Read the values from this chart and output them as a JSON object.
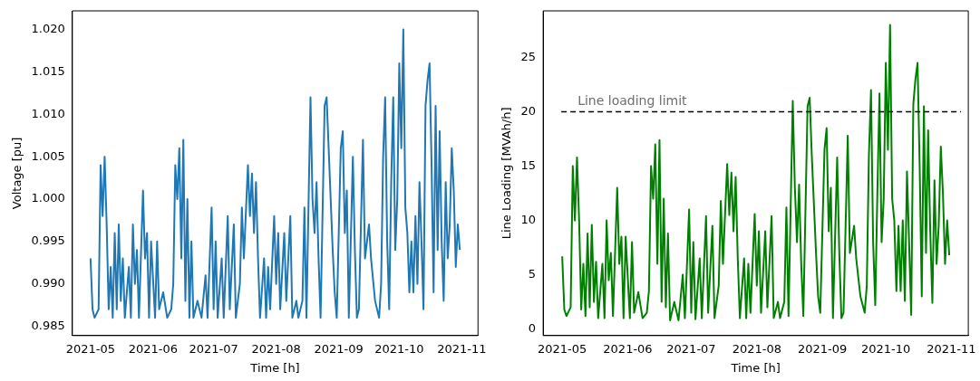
{
  "chart_data": [
    {
      "type": "line",
      "xlabel": "Time [h]",
      "ylabel": "Voltage [pu]",
      "grid": false,
      "legend": false,
      "marker": "none",
      "line_style": "solid",
      "xlim": [
        "2021-04-22",
        "2021-11-09"
      ],
      "xticks": [
        "2021-05",
        "2021-06",
        "2021-07",
        "2021-08",
        "2021-09",
        "2021-10",
        "2021-11"
      ],
      "ylim": [
        0.9839,
        1.0222
      ],
      "yticks": [
        {
          "value": 0.985,
          "label": "0.985"
        },
        {
          "value": 0.99,
          "label": "0.990"
        },
        {
          "value": 0.995,
          "label": "0.995"
        },
        {
          "value": 1.0,
          "label": "1.000"
        },
        {
          "value": 1.005,
          "label": "1.005"
        },
        {
          "value": 1.01,
          "label": "1.010"
        },
        {
          "value": 1.015,
          "label": "1.015"
        },
        {
          "value": 1.02,
          "label": "1.020"
        }
      ],
      "x": [
        "2021-05-01",
        "2021-05-02",
        "2021-05-03",
        "2021-05-05",
        "2021-05-06",
        "2021-05-07",
        "2021-05-08",
        "2021-05-09",
        "2021-05-10",
        "2021-05-11",
        "2021-05-12",
        "2021-05-13",
        "2021-05-14",
        "2021-05-15",
        "2021-05-16",
        "2021-05-17",
        "2021-05-18",
        "2021-05-20",
        "2021-05-21",
        "2021-05-22",
        "2021-05-23",
        "2021-05-24",
        "2021-05-25",
        "2021-05-27",
        "2021-05-28",
        "2021-05-29",
        "2021-05-30",
        "2021-05-31",
        "2021-06-02",
        "2021-06-03",
        "2021-06-04",
        "2021-06-06",
        "2021-06-08",
        "2021-06-10",
        "2021-06-11",
        "2021-06-12",
        "2021-06-13",
        "2021-06-14",
        "2021-06-15",
        "2021-06-16",
        "2021-06-17",
        "2021-06-18",
        "2021-06-19",
        "2021-06-20",
        "2021-06-21",
        "2021-06-23",
        "2021-06-25",
        "2021-06-27",
        "2021-06-28",
        "2021-06-30",
        "2021-07-01",
        "2021-07-02",
        "2021-07-03",
        "2021-07-05",
        "2021-07-06",
        "2021-07-08",
        "2021-07-09",
        "2021-07-11",
        "2021-07-12",
        "2021-07-14",
        "2021-07-15",
        "2021-07-16",
        "2021-07-18",
        "2021-07-19",
        "2021-07-20",
        "2021-07-21",
        "2021-07-22",
        "2021-07-23",
        "2021-07-24",
        "2021-07-26",
        "2021-07-27",
        "2021-07-28",
        "2021-07-29",
        "2021-07-31",
        "2021-08-01",
        "2021-08-02",
        "2021-08-03",
        "2021-08-05",
        "2021-08-06",
        "2021-08-08",
        "2021-08-09",
        "2021-08-11",
        "2021-08-12",
        "2021-08-14",
        "2021-08-15",
        "2021-08-16",
        "2021-08-18",
        "2021-08-19",
        "2021-08-20",
        "2021-08-21",
        "2021-08-22",
        "2021-08-23",
        "2021-08-25",
        "2021-08-26",
        "2021-08-27",
        "2021-08-29",
        "2021-08-30",
        "2021-08-31",
        "2021-09-02",
        "2021-09-03",
        "2021-09-04",
        "2021-09-05",
        "2021-09-06",
        "2021-09-08",
        "2021-09-09",
        "2021-09-10",
        "2021-09-11",
        "2021-09-13",
        "2021-09-14",
        "2021-09-16",
        "2021-09-17",
        "2021-09-19",
        "2021-09-21",
        "2021-09-22",
        "2021-09-23",
        "2021-09-24",
        "2021-09-25",
        "2021-09-26",
        "2021-09-27",
        "2021-09-28",
        "2021-09-29",
        "2021-09-30",
        "2021-10-01",
        "2021-10-02",
        "2021-10-03",
        "2021-10-04",
        "2021-10-05",
        "2021-10-06",
        "2021-10-07",
        "2021-10-08",
        "2021-10-09",
        "2021-10-10",
        "2021-10-11",
        "2021-10-12",
        "2021-10-13",
        "2021-10-14",
        "2021-10-15",
        "2021-10-16",
        "2021-10-17",
        "2021-10-18",
        "2021-10-19",
        "2021-10-20",
        "2021-10-21",
        "2021-10-22",
        "2021-10-23",
        "2021-10-24",
        "2021-10-25",
        "2021-10-26",
        "2021-10-27",
        "2021-10-28",
        "2021-10-29",
        "2021-10-30",
        "2021-10-31"
      ],
      "series": [
        {
          "color": "#1f77b4",
          "values": [
            0.993,
            0.987,
            0.986,
            0.987,
            1.004,
            0.998,
            1.005,
            0.997,
            0.987,
            0.992,
            0.986,
            0.996,
            0.987,
            0.997,
            0.988,
            0.993,
            0.986,
            0.992,
            0.986,
            0.997,
            0.99,
            0.994,
            0.986,
            1.001,
            0.993,
            0.996,
            0.986,
            0.995,
            0.986,
            0.995,
            0.987,
            0.989,
            0.986,
            0.987,
            0.99,
            1.004,
            1.0,
            1.006,
            0.993,
            1.007,
            0.988,
            1.0,
            0.986,
            0.995,
            0.986,
            0.988,
            0.986,
            0.991,
            0.986,
            0.999,
            0.987,
            0.995,
            0.986,
            0.993,
            0.986,
            0.998,
            0.987,
            0.997,
            0.986,
            0.99,
            0.999,
            0.993,
            1.004,
            0.998,
            1.003,
            0.996,
            1.002,
            0.993,
            0.986,
            0.993,
            0.986,
            0.992,
            0.987,
            0.998,
            0.99,
            0.996,
            0.987,
            0.996,
            0.988,
            0.998,
            0.986,
            0.988,
            0.986,
            0.988,
            0.999,
            0.986,
            1.012,
            1.0,
            0.996,
            1.002,
            0.993,
            0.986,
            1.011,
            1.012,
            1.006,
            0.994,
            0.989,
            0.986,
            1.006,
            1.008,
            0.996,
            1.001,
            0.986,
            1.005,
            0.994,
            0.986,
            0.987,
            1.007,
            0.993,
            0.997,
            0.993,
            0.988,
            0.986,
            0.99,
            1.005,
            1.012,
            0.995,
            0.987,
            1.002,
            1.012,
            0.994,
            1.0,
            1.016,
            1.006,
            1.02,
            0.999,
            0.996,
            0.989,
            0.995,
            0.989,
            0.998,
            0.99,
            1.002,
            0.995,
            0.987,
            1.011,
            1.014,
            1.016,
            1.004,
            0.989,
            1.011,
            0.994,
            1.008,
            0.995,
            0.988,
            1.002,
            0.993,
            0.997,
            1.006,
            1.001,
            0.992,
            0.997,
            0.994
          ]
        }
      ]
    },
    {
      "type": "line",
      "xlabel": "Time [h]",
      "ylabel": "Line Loading [MVAh/h]",
      "grid": false,
      "legend": false,
      "marker": "none",
      "line_style": "solid",
      "xlim": [
        "2021-04-22",
        "2021-11-09"
      ],
      "xticks": [
        "2021-05",
        "2021-06",
        "2021-07",
        "2021-08",
        "2021-09",
        "2021-10",
        "2021-11"
      ],
      "ylim": [
        -0.6,
        29.3
      ],
      "yticks": [
        0,
        5,
        10,
        15,
        20,
        25
      ],
      "ref_lines": [
        {
          "axis": "y",
          "value": 20,
          "label": "Line loading limit",
          "color": "#000000",
          "line_style": "dashed"
        }
      ],
      "x": [
        "2021-05-01",
        "2021-05-02",
        "2021-05-03",
        "2021-05-05",
        "2021-05-06",
        "2021-05-07",
        "2021-05-08",
        "2021-05-09",
        "2021-05-10",
        "2021-05-11",
        "2021-05-12",
        "2021-05-13",
        "2021-05-14",
        "2021-05-15",
        "2021-05-16",
        "2021-05-17",
        "2021-05-18",
        "2021-05-20",
        "2021-05-21",
        "2021-05-22",
        "2021-05-23",
        "2021-05-24",
        "2021-05-25",
        "2021-05-27",
        "2021-05-28",
        "2021-05-29",
        "2021-05-30",
        "2021-05-31",
        "2021-06-02",
        "2021-06-03",
        "2021-06-04",
        "2021-06-06",
        "2021-06-08",
        "2021-06-10",
        "2021-06-11",
        "2021-06-12",
        "2021-06-13",
        "2021-06-14",
        "2021-06-15",
        "2021-06-16",
        "2021-06-17",
        "2021-06-18",
        "2021-06-19",
        "2021-06-20",
        "2021-06-21",
        "2021-06-23",
        "2021-06-25",
        "2021-06-27",
        "2021-06-28",
        "2021-06-30",
        "2021-07-01",
        "2021-07-02",
        "2021-07-03",
        "2021-07-05",
        "2021-07-06",
        "2021-07-08",
        "2021-07-09",
        "2021-07-11",
        "2021-07-12",
        "2021-07-14",
        "2021-07-15",
        "2021-07-16",
        "2021-07-18",
        "2021-07-19",
        "2021-07-20",
        "2021-07-21",
        "2021-07-22",
        "2021-07-23",
        "2021-07-24",
        "2021-07-26",
        "2021-07-27",
        "2021-07-28",
        "2021-07-29",
        "2021-07-31",
        "2021-08-01",
        "2021-08-02",
        "2021-08-03",
        "2021-08-05",
        "2021-08-06",
        "2021-08-08",
        "2021-08-09",
        "2021-08-11",
        "2021-08-12",
        "2021-08-14",
        "2021-08-15",
        "2021-08-16",
        "2021-08-18",
        "2021-08-19",
        "2021-08-20",
        "2021-08-21",
        "2021-08-22",
        "2021-08-23",
        "2021-08-25",
        "2021-08-26",
        "2021-08-27",
        "2021-08-29",
        "2021-08-30",
        "2021-08-31",
        "2021-09-02",
        "2021-09-03",
        "2021-09-04",
        "2021-09-05",
        "2021-09-06",
        "2021-09-08",
        "2021-09-09",
        "2021-09-10",
        "2021-09-11",
        "2021-09-13",
        "2021-09-14",
        "2021-09-16",
        "2021-09-17",
        "2021-09-19",
        "2021-09-21",
        "2021-09-22",
        "2021-09-23",
        "2021-09-24",
        "2021-09-25",
        "2021-09-26",
        "2021-09-27",
        "2021-09-28",
        "2021-09-29",
        "2021-09-30",
        "2021-10-01",
        "2021-10-02",
        "2021-10-03",
        "2021-10-04",
        "2021-10-05",
        "2021-10-06",
        "2021-10-07",
        "2021-10-08",
        "2021-10-09",
        "2021-10-10",
        "2021-10-11",
        "2021-10-12",
        "2021-10-13",
        "2021-10-14",
        "2021-10-15",
        "2021-10-16",
        "2021-10-17",
        "2021-10-18",
        "2021-10-19",
        "2021-10-20",
        "2021-10-21",
        "2021-10-22",
        "2021-10-23",
        "2021-10-24",
        "2021-10-25",
        "2021-10-26",
        "2021-10-27",
        "2021-10-28",
        "2021-10-29",
        "2021-10-30",
        "2021-10-31"
      ],
      "series": [
        {
          "color": "#008000",
          "values": [
            6.7,
            1.8,
            1.2,
            2.0,
            15.0,
            10.0,
            15.8,
            10.0,
            1.8,
            6.0,
            1.2,
            8.8,
            2.0,
            9.6,
            2.5,
            6.2,
            1.0,
            6.0,
            1.0,
            10.0,
            4.5,
            7.0,
            1.2,
            13.0,
            6.0,
            8.5,
            1.0,
            8.5,
            1.0,
            8.0,
            1.5,
            3.4,
            1.0,
            1.5,
            3.5,
            15.0,
            12.0,
            17.0,
            6.0,
            17.4,
            2.5,
            12.0,
            2.0,
            8.8,
            0.8,
            2.5,
            0.8,
            5.0,
            1.0,
            11.0,
            1.5,
            8.0,
            0.9,
            6.5,
            1.0,
            10.4,
            1.5,
            9.5,
            1.0,
            4.0,
            11.8,
            6.0,
            15.2,
            10.5,
            14.4,
            9.0,
            14.0,
            6.5,
            1.0,
            6.5,
            1.0,
            6.0,
            1.5,
            10.6,
            4.0,
            9.0,
            1.5,
            9.0,
            2.0,
            10.4,
            1.0,
            2.5,
            1.0,
            2.5,
            11.2,
            1.2,
            21.0,
            13.0,
            8.0,
            13.3,
            6.0,
            1.2,
            20.5,
            21.3,
            16.0,
            7.0,
            3.0,
            1.5,
            16.5,
            18.5,
            9.0,
            13.0,
            1.0,
            15.8,
            7.0,
            1.0,
            1.5,
            17.8,
            7.0,
            9.5,
            6.5,
            3.0,
            1.5,
            4.0,
            16.0,
            22.0,
            8.0,
            2.2,
            12.5,
            21.7,
            8.0,
            12.0,
            24.5,
            16.5,
            28.0,
            12.0,
            10.0,
            3.5,
            9.5,
            3.5,
            10.0,
            2.6,
            14.5,
            8.0,
            1.3,
            20.7,
            23.0,
            24.5,
            15.0,
            3.0,
            20.5,
            7.0,
            18.3,
            9.0,
            2.4,
            13.7,
            6.0,
            9.5,
            16.8,
            12.5,
            6.0,
            10.0,
            6.8
          ]
        }
      ]
    }
  ]
}
